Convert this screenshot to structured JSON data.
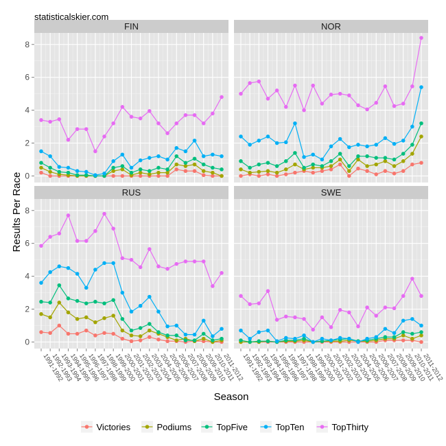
{
  "watermark": "statisticalskier.com",
  "chart_data": {
    "type": "line",
    "xlabel": "Season",
    "ylabel": "Results Per Race",
    "ylim": [
      -0.4,
      8.7
    ],
    "yticks": [
      0,
      2,
      4,
      6,
      8
    ],
    "seasons": [
      "1991-1992",
      "1992-1993",
      "1993-1994",
      "1994-1995",
      "1995-1996",
      "1996-1997",
      "1997-1998",
      "1998-1999",
      "1999-2000",
      "2000-2001",
      "2001-2002",
      "2002-2003",
      "2003-2004",
      "2004-2005",
      "2005-2006",
      "2006-2007",
      "2007-2008",
      "2008-2009",
      "2009-2010",
      "2010-2011",
      "2011-2012"
    ],
    "legend": {
      "position": "bottom"
    },
    "series_meta": [
      {
        "name": "Victories",
        "color": "#F8766D"
      },
      {
        "name": "Podiums",
        "color": "#A3A500"
      },
      {
        "name": "TopFive",
        "color": "#00BF7D"
      },
      {
        "name": "TopTen",
        "color": "#00B0F6"
      },
      {
        "name": "TopThirty",
        "color": "#E76BF3"
      }
    ],
    "panels": [
      {
        "label": "FIN",
        "series": {
          "Victories": [
            0.2,
            0.0,
            0.0,
            0.0,
            0.0,
            0.0,
            0.0,
            0.0,
            0.0,
            0.0,
            0.0,
            0.0,
            0.0,
            0.0,
            0.0,
            0.4,
            0.3,
            0.3,
            0.05,
            0.0,
            0.0
          ],
          "Podiums": [
            0.5,
            0.25,
            0.1,
            0.05,
            0.0,
            0.0,
            0.0,
            0.0,
            0.3,
            0.4,
            0.05,
            0.2,
            0.1,
            0.2,
            0.2,
            0.7,
            0.6,
            0.7,
            0.3,
            0.2,
            0.0
          ],
          "TopFive": [
            0.8,
            0.5,
            0.25,
            0.2,
            0.05,
            0.05,
            0.0,
            0.0,
            0.5,
            0.6,
            0.2,
            0.4,
            0.3,
            0.5,
            0.4,
            1.2,
            0.8,
            1.05,
            0.7,
            0.5,
            0.4
          ],
          "TopTen": [
            1.5,
            1.2,
            0.55,
            0.5,
            0.3,
            0.25,
            0.05,
            0.15,
            0.9,
            1.3,
            0.5,
            0.95,
            1.1,
            1.2,
            1.0,
            1.7,
            1.5,
            2.15,
            1.2,
            1.3,
            1.2
          ],
          "TopThirty": [
            3.4,
            3.3,
            3.45,
            2.2,
            2.85,
            2.85,
            1.5,
            2.4,
            3.2,
            4.2,
            3.6,
            3.5,
            3.95,
            3.2,
            2.6,
            3.2,
            3.7,
            3.7,
            3.2,
            3.8,
            4.8
          ]
        }
      },
      {
        "label": "NOR",
        "series": {
          "Victories": [
            0.0,
            0.1,
            0.0,
            0.1,
            0.0,
            0.1,
            0.2,
            0.3,
            0.2,
            0.3,
            0.4,
            0.7,
            0.0,
            0.45,
            0.3,
            0.1,
            0.3,
            0.15,
            0.3,
            0.7,
            0.8
          ],
          "Podiums": [
            0.4,
            0.2,
            0.25,
            0.3,
            0.2,
            0.4,
            0.7,
            0.4,
            0.5,
            0.5,
            0.6,
            1.0,
            0.3,
            1.0,
            0.6,
            0.7,
            0.9,
            0.6,
            0.9,
            1.35,
            2.4
          ],
          "TopFive": [
            0.9,
            0.5,
            0.7,
            0.8,
            0.6,
            0.9,
            1.4,
            0.5,
            0.7,
            0.6,
            0.9,
            1.35,
            0.6,
            1.2,
            1.2,
            1.1,
            1.1,
            1.0,
            1.35,
            1.9,
            3.2
          ],
          "TopTen": [
            2.4,
            1.9,
            2.15,
            2.4,
            2.0,
            2.05,
            3.2,
            1.15,
            1.3,
            1.0,
            1.8,
            2.25,
            1.75,
            1.9,
            1.8,
            1.9,
            2.3,
            1.95,
            2.15,
            3.0,
            5.4
          ],
          "TopThirty": [
            5.0,
            5.65,
            5.75,
            4.7,
            5.2,
            4.2,
            5.5,
            4.0,
            5.5,
            4.4,
            4.95,
            5.0,
            4.9,
            4.3,
            4.05,
            4.45,
            5.45,
            4.25,
            4.4,
            5.45,
            8.4
          ]
        }
      },
      {
        "label": "RUS",
        "series": {
          "Victories": [
            0.6,
            0.55,
            1.0,
            0.5,
            0.5,
            0.7,
            0.4,
            0.55,
            0.5,
            0.2,
            0.05,
            0.1,
            0.3,
            0.15,
            0.05,
            0.05,
            0.0,
            0.05,
            0.05,
            0.0,
            0.0
          ],
          "Podiums": [
            1.7,
            1.5,
            2.4,
            1.8,
            1.4,
            1.5,
            1.2,
            1.45,
            1.6,
            0.7,
            0.4,
            0.35,
            0.7,
            0.5,
            0.3,
            0.1,
            0.2,
            0.05,
            0.2,
            0.0,
            0.1
          ],
          "TopFive": [
            2.45,
            2.4,
            3.45,
            2.65,
            2.5,
            2.35,
            2.45,
            2.35,
            2.55,
            1.4,
            0.7,
            0.85,
            1.1,
            0.6,
            0.4,
            0.4,
            0.1,
            0.1,
            0.5,
            0.1,
            0.2
          ],
          "TopTen": [
            3.6,
            4.25,
            4.6,
            4.5,
            4.15,
            3.3,
            4.4,
            4.8,
            4.8,
            3.0,
            1.85,
            2.2,
            2.75,
            1.85,
            0.95,
            1.0,
            0.45,
            0.45,
            1.3,
            0.35,
            0.8
          ],
          "TopThirty": [
            5.85,
            6.4,
            6.6,
            7.7,
            6.15,
            6.15,
            6.75,
            7.8,
            6.9,
            5.1,
            5.0,
            4.55,
            5.65,
            4.6,
            4.45,
            4.75,
            4.9,
            4.9,
            4.9,
            3.4,
            4.2
          ]
        }
      },
      {
        "label": "SWE",
        "series": {
          "Victories": [
            0.0,
            0.0,
            0.0,
            0.0,
            0.0,
            0.0,
            0.0,
            0.0,
            0.0,
            0.0,
            0.0,
            0.0,
            0.0,
            0.0,
            0.0,
            0.0,
            0.1,
            0.1,
            0.1,
            0.1,
            0.0
          ],
          "Podiums": [
            0.0,
            0.0,
            0.0,
            0.05,
            0.0,
            0.05,
            0.05,
            0.1,
            0.0,
            0.05,
            0.05,
            0.05,
            0.1,
            0.05,
            0.05,
            0.1,
            0.2,
            0.2,
            0.4,
            0.2,
            0.4
          ],
          "TopFive": [
            0.1,
            0.0,
            0.05,
            0.05,
            0.0,
            0.1,
            0.1,
            0.2,
            0.0,
            0.05,
            0.1,
            0.15,
            0.2,
            0.05,
            0.1,
            0.2,
            0.3,
            0.3,
            0.6,
            0.5,
            0.6
          ],
          "TopTen": [
            0.7,
            0.2,
            0.6,
            0.7,
            0.05,
            0.25,
            0.2,
            0.4,
            0.0,
            0.2,
            0.1,
            0.25,
            0.2,
            0.0,
            0.2,
            0.3,
            0.8,
            0.55,
            1.3,
            1.4,
            1.0
          ],
          "TopThirty": [
            2.8,
            2.3,
            2.35,
            3.1,
            1.35,
            1.55,
            1.5,
            1.4,
            0.75,
            1.5,
            0.9,
            1.95,
            1.8,
            0.95,
            2.1,
            1.6,
            2.1,
            2.05,
            2.8,
            3.85,
            2.8
          ]
        }
      }
    ]
  }
}
